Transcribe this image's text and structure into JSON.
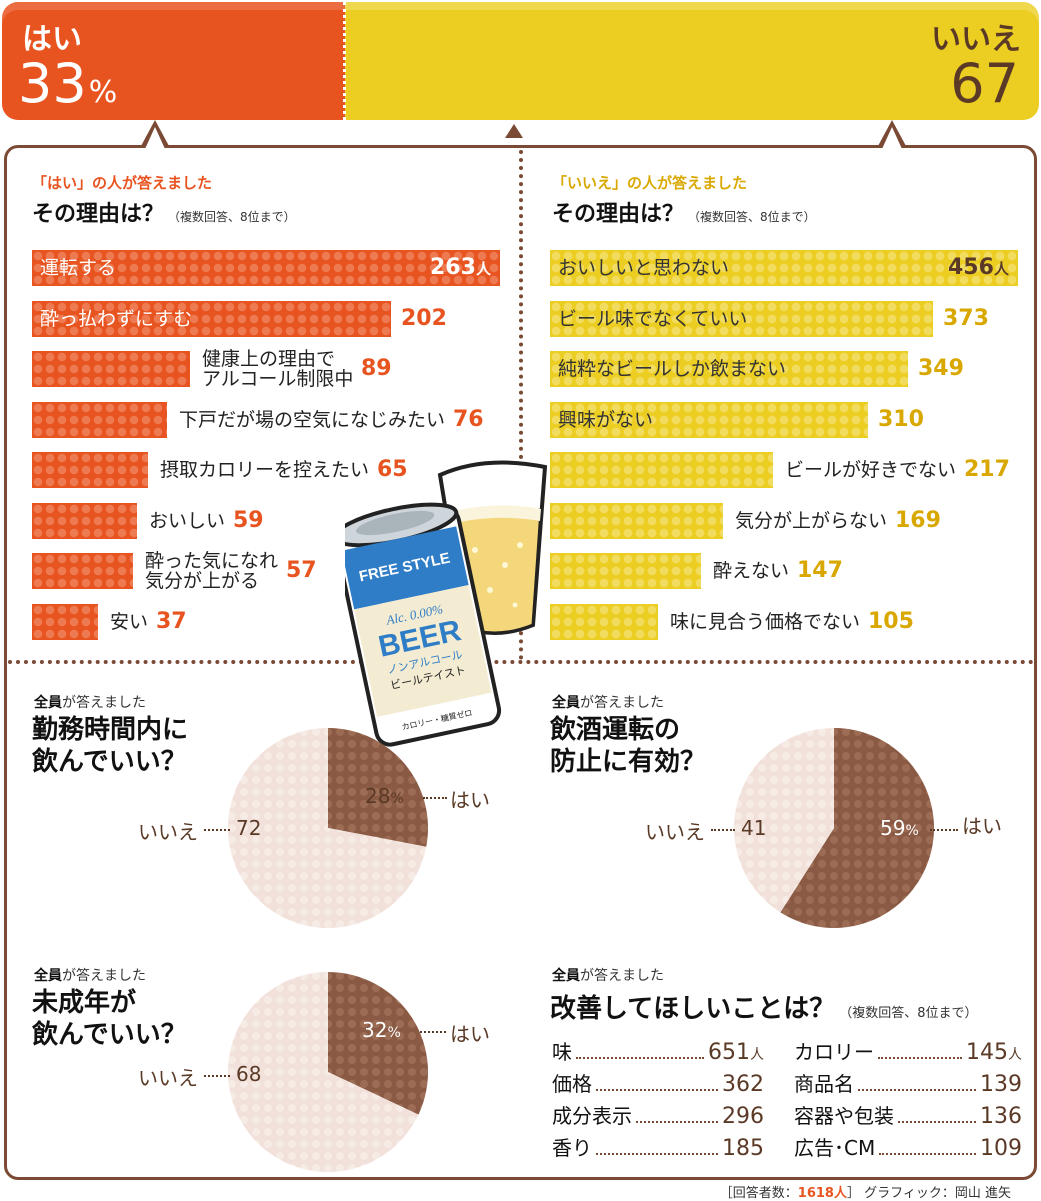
{
  "top": {
    "yes_label": "はい",
    "yes_value": "33",
    "yes_unit": "%",
    "no_label": "いいえ",
    "no_value": "67",
    "yes_color": "#e85420",
    "no_color": "#ecce22"
  },
  "reasons_yes": {
    "subtitle": "「はい」の人が答えました",
    "title": "その理由は？",
    "note": "（複数回答、8位まで）",
    "unit": "人"
  },
  "reasons_no": {
    "subtitle": "「いいえ」の人が答えました",
    "title": "その理由は？",
    "note": "（複数回答、8位まで）",
    "unit": "人"
  },
  "q_work": {
    "sub_bold": "全員",
    "sub": "が答えました",
    "title_1": "勤務時間内に",
    "title_2": "飲んでいい？"
  },
  "q_drive": {
    "sub_bold": "全員",
    "sub": "が答えました",
    "title_1": "飲酒運転の",
    "title_2": "防止に有効？"
  },
  "q_minor": {
    "sub_bold": "全員",
    "sub": "が答えました",
    "title_1": "未成年が",
    "title_2": "飲んでいい？"
  },
  "q_improve": {
    "sub_bold": "全員",
    "sub": "が答えました",
    "title": "改善してほしいことは？",
    "note": "（複数回答、8位まで）"
  },
  "pie_labels": {
    "yes": "はい",
    "no": "いいえ",
    "pct": "%"
  },
  "can": {
    "brand": "FREE STYLE",
    "alc": "Alc. 0.00%",
    "beer": "BEER",
    "line1": "ノンアルコール",
    "line2": "ビールテイスト",
    "line3": "カロリー・糖質ゼロ"
  },
  "footer": {
    "prefix": "［回答者数：",
    "count": "1618人",
    "suffix": "］ グラフィック：岡山 進矢"
  },
  "chart_data": [
    {
      "type": "bar",
      "title": "はい 33% / いいえ 67",
      "categories": [
        "はい",
        "いいえ"
      ],
      "values": [
        33,
        67
      ]
    },
    {
      "type": "bar",
      "title": "その理由は？",
      "categories": [
        "運転する",
        "酔っ払わずにすむ",
        "健康上の理由でアルコール制限中",
        "下戸だが場の空気になじみたい",
        "摂取カロリーを控えたい",
        "おいしい",
        "酔った気になれ気分が上がる",
        "安い"
      ],
      "labels_display": [
        [
          "運転する"
        ],
        [
          "酔っ払わずにすむ"
        ],
        [
          "健康上の理由で",
          "アルコール制限中"
        ],
        [
          "下戸だが場の空気になじみたい"
        ],
        [
          "摂取カロリーを控えたい"
        ],
        [
          "おいしい"
        ],
        [
          "酔った気になれ",
          "気分が上がる"
        ],
        [
          "安い"
        ]
      ],
      "values": [
        263,
        202,
        89,
        76,
        65,
        59,
        57,
        37
      ],
      "xlim": [
        0,
        263
      ]
    },
    {
      "type": "bar",
      "title": "その理由は？",
      "categories": [
        "おいしいと思わない",
        "ビール味でなくていい",
        "純粋なビールしか飲まない",
        "興味がない",
        "ビールが好きでない",
        "気分が上がらない",
        "酔えない",
        "味に見合う価格でない"
      ],
      "values": [
        456,
        373,
        349,
        310,
        217,
        169,
        147,
        105
      ],
      "xlim": [
        0,
        456
      ]
    },
    {
      "type": "pie",
      "title": "勤務時間内に飲んでいい？",
      "categories": [
        "はい",
        "いいえ"
      ],
      "values": [
        28,
        72
      ]
    },
    {
      "type": "pie",
      "title": "飲酒運転の防止に有効？",
      "categories": [
        "はい",
        "いいえ"
      ],
      "values": [
        59,
        41
      ]
    },
    {
      "type": "pie",
      "title": "未成年が飲んでいい？",
      "categories": [
        "はい",
        "いいえ"
      ],
      "values": [
        32,
        68
      ]
    },
    {
      "type": "table",
      "title": "改善してほしいことは？",
      "categories": [
        "味",
        "価格",
        "成分表示",
        "香り",
        "カロリー",
        "商品名",
        "容器や包装",
        "広告・CM"
      ],
      "labels_display": [
        "味",
        "価格",
        "成分表示",
        "香り",
        "カロリー",
        "商品名",
        "容器や包装",
        "広告･CM"
      ],
      "values": [
        651,
        362,
        296,
        185,
        145,
        139,
        136,
        109
      ],
      "unit": "人"
    }
  ]
}
